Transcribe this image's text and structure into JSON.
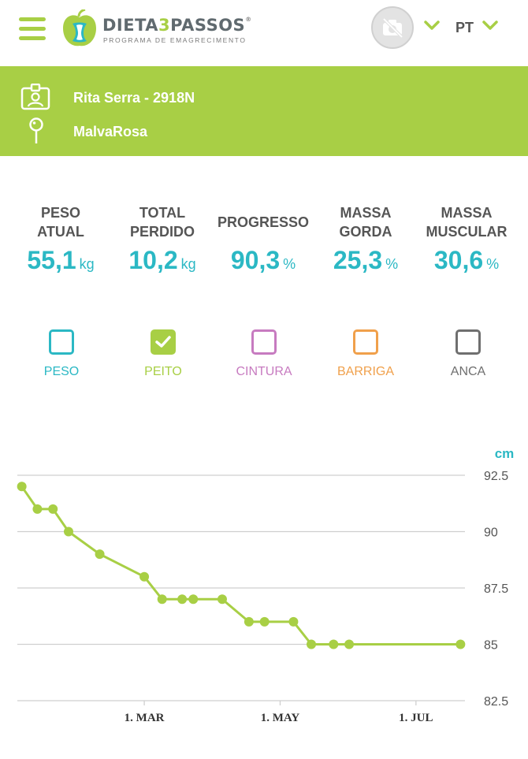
{
  "header": {
    "logo_brand_main": "DIETA",
    "logo_brand_num": "3",
    "logo_brand_end": "PASSOS",
    "logo_reg": "®",
    "logo_subtitle": "PROGRAMA DE EMAGRECIMENTO",
    "language": "PT"
  },
  "profile": {
    "name": "Rita Serra - 2918N",
    "location": "MalvaRosa"
  },
  "stats": [
    {
      "label_line1": "PESO",
      "label_line2": "ATUAL",
      "value": "55,1",
      "unit": "kg"
    },
    {
      "label_line1": "TOTAL",
      "label_line2": "PERDIDO",
      "value": "10,2",
      "unit": "kg"
    },
    {
      "label_line1": "PROGRESSO",
      "label_line2": "",
      "value": "90,3",
      "unit": "%"
    },
    {
      "label_line1": "MASSA",
      "label_line2": "GORDA",
      "value": "25,3",
      "unit": "%"
    },
    {
      "label_line1": "MASSA",
      "label_line2": "MUSCULAR",
      "value": "30,6",
      "unit": "%"
    }
  ],
  "toggles": [
    {
      "label": "PESO",
      "checked": false,
      "color": "#2bb8c4"
    },
    {
      "label": "PEITO",
      "checked": true,
      "color": "#a8cf45"
    },
    {
      "label": "CINTURA",
      "checked": false,
      "color": "#c77bc0"
    },
    {
      "label": "BARRIGA",
      "checked": false,
      "color": "#f0a04b"
    },
    {
      "label": "ANCA",
      "checked": false,
      "color": "#6f6f6f"
    }
  ],
  "colors": {
    "accent": "#a8cf45",
    "teal": "#2bb8c4"
  },
  "chart_data": {
    "type": "line",
    "ylabel": "cm",
    "ylim": [
      82.5,
      92.5
    ],
    "y_ticks": [
      "92.5",
      "90",
      "87.5",
      "85",
      "82.5"
    ],
    "x_ticks": [
      {
        "label": "1. MAR",
        "x": "2024-03-01"
      },
      {
        "label": "1. MAY",
        "x": "2024-05-01"
      },
      {
        "label": "1. JUL",
        "x": "2024-07-01"
      }
    ],
    "xlim": [
      "2024-01-04",
      "2024-07-23"
    ],
    "series": [
      {
        "color": "#a8cf45",
        "points": [
          {
            "x": "2024-01-06",
            "y": 92.0
          },
          {
            "x": "2024-01-13",
            "y": 91.0
          },
          {
            "x": "2024-01-20",
            "y": 91.0
          },
          {
            "x": "2024-01-27",
            "y": 90.0
          },
          {
            "x": "2024-02-10",
            "y": 89.0
          },
          {
            "x": "2024-03-01",
            "y": 88.0
          },
          {
            "x": "2024-03-09",
            "y": 87.0
          },
          {
            "x": "2024-03-18",
            "y": 87.0
          },
          {
            "x": "2024-03-23",
            "y": 87.0
          },
          {
            "x": "2024-04-05",
            "y": 87.0
          },
          {
            "x": "2024-04-17",
            "y": 86.0
          },
          {
            "x": "2024-04-24",
            "y": 86.0
          },
          {
            "x": "2024-05-07",
            "y": 86.0
          },
          {
            "x": "2024-05-15",
            "y": 85.0
          },
          {
            "x": "2024-05-25",
            "y": 85.0
          },
          {
            "x": "2024-06-01",
            "y": 85.0
          },
          {
            "x": "2024-07-21",
            "y": 85.0
          }
        ]
      }
    ]
  }
}
